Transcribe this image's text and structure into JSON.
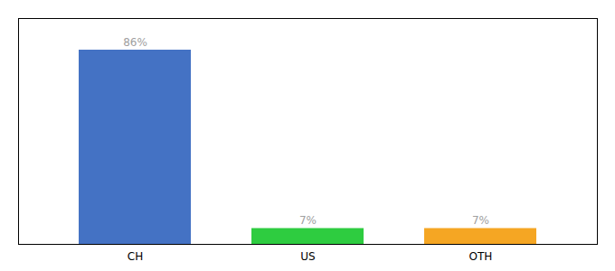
{
  "chart_data": {
    "type": "bar",
    "categories": [
      "CH",
      "US",
      "OTH"
    ],
    "values": [
      86,
      7,
      7
    ],
    "colors": [
      "#4472c4",
      "#2ecc40",
      "#f5a623"
    ],
    "data_labels": true,
    "value_labels": [
      "86%",
      "7%",
      "7%"
    ],
    "ylim": [
      0,
      100
    ],
    "tick_labels": "x",
    "grid": false
  }
}
